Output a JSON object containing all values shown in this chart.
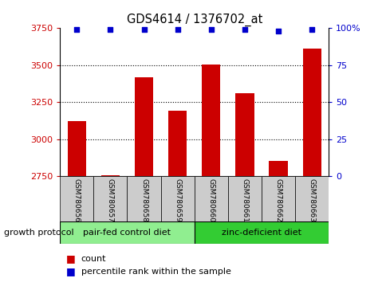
{
  "title": "GDS4614 / 1376702_at",
  "samples": [
    "GSM780656",
    "GSM780657",
    "GSM780658",
    "GSM780659",
    "GSM780660",
    "GSM780661",
    "GSM780662",
    "GSM780663"
  ],
  "counts": [
    3120,
    2755,
    3420,
    3190,
    3505,
    3310,
    2855,
    3610
  ],
  "percentile_ranks": [
    99,
    99,
    99,
    99,
    99,
    99,
    98,
    99
  ],
  "ylim_left": [
    2750,
    3750
  ],
  "ylim_right": [
    0,
    100
  ],
  "yticks_left": [
    2750,
    3000,
    3250,
    3500,
    3750
  ],
  "yticks_right": [
    0,
    25,
    50,
    75,
    100
  ],
  "ytick_labels_right": [
    "0",
    "25",
    "50",
    "75",
    "100%"
  ],
  "bar_color": "#cc0000",
  "dot_color": "#0000cc",
  "grid_values": [
    3000,
    3250,
    3500
  ],
  "group1_label": "pair-fed control diet",
  "group2_label": "zinc-deficient diet",
  "group1_color": "#90ee90",
  "group2_color": "#33cc33",
  "group1_indices": [
    0,
    1,
    2,
    3
  ],
  "group2_indices": [
    4,
    5,
    6,
    7
  ],
  "protocol_label": "growth protocol",
  "legend_count_label": "count",
  "legend_pct_label": "percentile rank within the sample",
  "tick_label_color_left": "#cc0000",
  "tick_label_color_right": "#0000cc",
  "bar_width": 0.55,
  "background_color": "#ffffff",
  "label_box_color": "#cccccc"
}
